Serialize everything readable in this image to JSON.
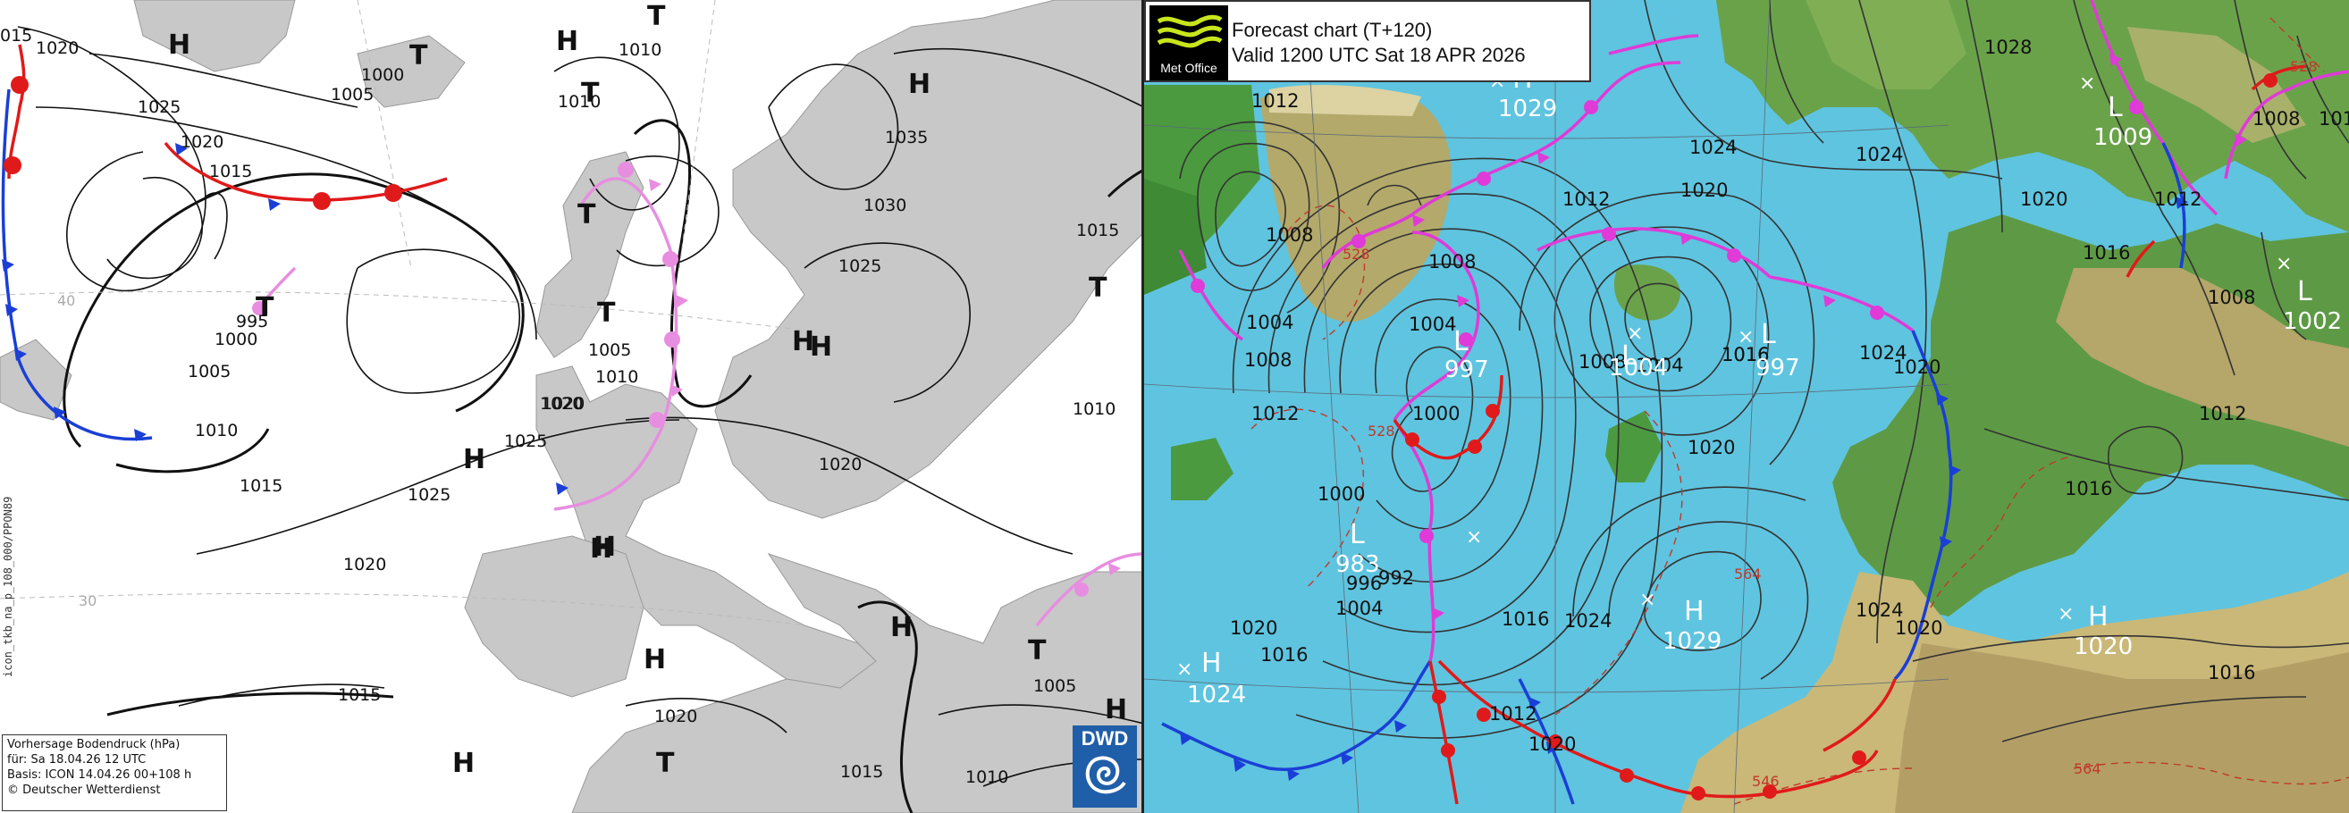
{
  "left_chart": {
    "info": {
      "line1": "Vorhersage Bodendruck (hPa)",
      "line2": "für:  Sa  18.04.26  12 UTC",
      "line3": "Basis: ICON  14.04.26 00+108 h",
      "line4": "© Deutscher Wetterdienst"
    },
    "side_label": "icon_tkb_na_p_108_000/PPON89",
    "logo_text": "DWD",
    "isobar_labels": [
      "015",
      "1020",
      "1025",
      "1000",
      "1005",
      "1010",
      "1010",
      "1020",
      "1015",
      "995",
      "1000",
      "1005",
      "1010",
      "1015",
      "1025",
      "1020",
      "1025",
      "1020",
      "1015",
      "1005",
      "1010",
      "1020",
      "1035",
      "1030",
      "1025",
      "1015",
      "1010",
      "1020",
      "1020",
      "1005",
      "1015",
      "1010"
    ],
    "pressure_centers": [
      "H",
      "T",
      "H",
      "T",
      "T",
      "H",
      "T",
      "T",
      "H",
      "H",
      "H",
      "H",
      "H",
      "T",
      "T",
      "H",
      "H",
      "T",
      "H",
      "T",
      "H"
    ],
    "lat_labels": [
      "40",
      "30"
    ]
  },
  "right_chart": {
    "logo_text": "Met Office",
    "title_line1": "Forecast chart (T+120)",
    "title_line2": "Valid 1200 UTC Sat 18 APR 2026",
    "isobar_labels": [
      "1012",
      "1008",
      "1004",
      "1008",
      "1012",
      "1004",
      "1000",
      "1000",
      "1008",
      "1012",
      "1024",
      "1020",
      "1016",
      "1004",
      "1008",
      "1004",
      "996",
      "1016",
      "1020",
      "1024",
      "1020",
      "1016",
      "1012",
      "1020",
      "1024",
      "1020",
      "1016",
      "1024",
      "1020",
      "1028",
      "1024",
      "1020",
      "1016",
      "1012",
      "1008",
      "1012",
      "1016",
      "1016",
      "1008",
      "1012"
    ],
    "thickness_labels": [
      "528",
      "528",
      "564",
      "564",
      "546",
      "528"
    ],
    "centers": [
      {
        "letter": "H",
        "value": "1029"
      },
      {
        "letter": "L",
        "value": "1009"
      },
      {
        "letter": "L",
        "value": "997"
      },
      {
        "letter": "L",
        "value": "1004"
      },
      {
        "letter": "L",
        "value": "997"
      },
      {
        "letter": "L",
        "value": "1002"
      },
      {
        "letter": "L",
        "value": "983"
      },
      {
        "letter": "L",
        "value": "992"
      },
      {
        "letter": "H",
        "value": "1029"
      },
      {
        "letter": "H",
        "value": "1020"
      },
      {
        "letter": "H",
        "value": "1024"
      }
    ]
  },
  "colors": {
    "sea_right": "#5fc4df",
    "land_left": "#c8c8c8",
    "cold_front": "#1a3fd6",
    "warm_front": "#e01a1a",
    "occluded_front": "#e03ad8",
    "occluded_front_left": "#e78ee0",
    "dwd_blue": "#1f5ea8"
  }
}
